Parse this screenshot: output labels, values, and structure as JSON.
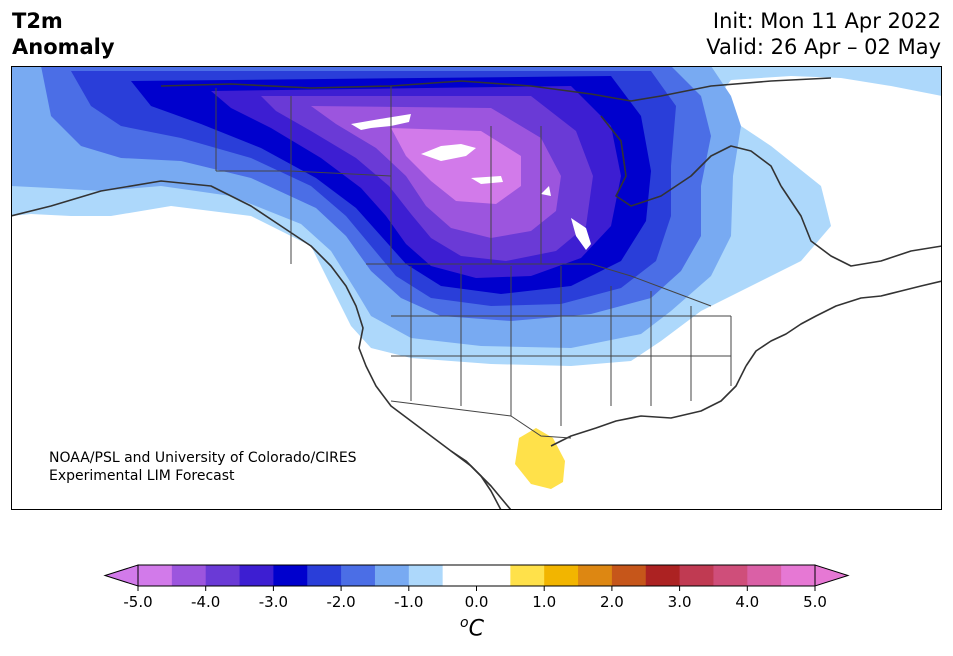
{
  "title": {
    "variable": "T2m",
    "variable_sub": "Anomaly",
    "init": "Init: Mon 11 Apr 2022",
    "valid": "Valid: 26 Apr – 02 May"
  },
  "credit": {
    "line1": "NOAA/PSL and University of Colorado/CIRES",
    "line2": "Experimental LIM Forecast"
  },
  "colorbar": {
    "unit_base": "C",
    "unit_sup": "o",
    "tick_labels": [
      "-5.0",
      "-4.0",
      "-3.0",
      "-2.0",
      "-1.0",
      "0.0",
      "1.0",
      "2.0",
      "3.0",
      "4.0",
      "5.0"
    ],
    "levels": [
      -5.0,
      -4.5,
      -4.0,
      -3.5,
      -3.0,
      -2.5,
      -2.0,
      -1.5,
      -1.0,
      -0.5,
      0.5,
      1.0,
      1.5,
      2.0,
      2.5,
      3.0,
      3.5,
      4.0,
      4.5,
      5.0
    ],
    "colors": [
      "#d27aea",
      "#9c55de",
      "#6a3ad6",
      "#3d1ed2",
      "#0000cd",
      "#2a3ed9",
      "#4b6ee6",
      "#78aaf2",
      "#add8fb",
      "#ffffff",
      "#ffe14a",
      "#f2b500",
      "#dd8712",
      "#c6561a",
      "#ac2222",
      "#c03a52",
      "#cf4e7a",
      "#da60a6",
      "#e678d4"
    ],
    "under_color": "#d27aea",
    "over_color": "#e678d4"
  },
  "map": {
    "land_color": "#ffffff",
    "ocean_color": "#ffffff",
    "coastline_color": "#333333",
    "border_color": "#444444"
  }
}
